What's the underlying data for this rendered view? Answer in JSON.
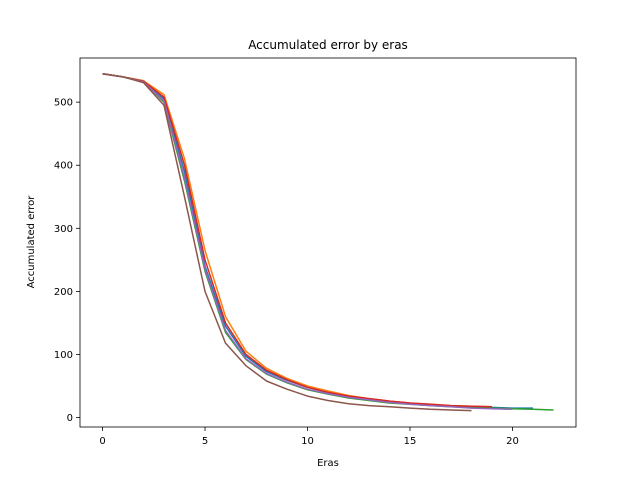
{
  "chart_data": {
    "type": "line",
    "title": "Accumulated error by eras",
    "xlabel": "Eras",
    "ylabel": "Accumulated error",
    "xlim": [
      -1.1,
      23.1
    ],
    "ylim": [
      -15,
      570
    ],
    "xticks": [
      0,
      5,
      10,
      15,
      20
    ],
    "yticks": [
      0,
      100,
      200,
      300,
      400,
      500
    ],
    "grid": false,
    "series": [
      {
        "color": "#1f77b4",
        "x": [
          0,
          1,
          2,
          3,
          4,
          5,
          6,
          7,
          8,
          9,
          10,
          11,
          12,
          13,
          14,
          15,
          16,
          17,
          18,
          19,
          20,
          21
        ],
        "y": [
          545,
          540,
          534,
          505,
          390,
          240,
          145,
          97,
          73,
          59,
          48,
          40,
          33,
          29,
          25,
          22,
          20,
          18,
          17,
          16,
          15,
          15
        ]
      },
      {
        "color": "#ff7f0e",
        "x": [
          0,
          1,
          2,
          3,
          4,
          5,
          6,
          7,
          8,
          9,
          10,
          11,
          12,
          13,
          14,
          15,
          16,
          17,
          18,
          19
        ],
        "y": [
          545,
          540,
          534,
          512,
          410,
          265,
          160,
          105,
          78,
          62,
          50,
          42,
          35,
          30,
          26,
          23,
          21,
          19,
          18,
          17
        ]
      },
      {
        "color": "#2ca02c",
        "x": [
          0,
          1,
          2,
          3,
          4,
          5,
          6,
          7,
          8,
          9,
          10,
          11,
          12,
          13,
          14,
          15,
          16,
          17,
          18,
          19,
          20,
          21,
          22
        ],
        "y": [
          545,
          540,
          533,
          500,
          375,
          232,
          135,
          92,
          69,
          55,
          44,
          37,
          31,
          27,
          23,
          21,
          19,
          17,
          16,
          15,
          14,
          13,
          12
        ]
      },
      {
        "color": "#d62728",
        "x": [
          0,
          1,
          2,
          3,
          4,
          5,
          6,
          7,
          8,
          9,
          10,
          11,
          12,
          13,
          14,
          15,
          16,
          17,
          18,
          19
        ],
        "y": [
          545,
          540,
          533,
          508,
          400,
          250,
          150,
          100,
          75,
          60,
          48,
          40,
          34,
          30,
          26,
          23,
          21,
          19,
          18,
          17
        ]
      },
      {
        "color": "#9467bd",
        "x": [
          0,
          1,
          2,
          3,
          4,
          5,
          6,
          7,
          8,
          9,
          10,
          11,
          12,
          13,
          14,
          15,
          16,
          17,
          18,
          19,
          20
        ],
        "y": [
          545,
          540,
          532,
          502,
          380,
          235,
          138,
          93,
          70,
          56,
          45,
          38,
          32,
          28,
          24,
          21,
          19,
          17,
          15,
          14,
          13
        ]
      },
      {
        "color": "#8c564b",
        "x": [
          0,
          1,
          2,
          3,
          4,
          5,
          6,
          7,
          8,
          9,
          10,
          11,
          12,
          13,
          14,
          15,
          16,
          17,
          18
        ],
        "y": [
          545,
          540,
          531,
          495,
          350,
          200,
          118,
          82,
          58,
          45,
          34,
          27,
          22,
          19,
          17,
          15,
          13,
          12,
          11
        ]
      }
    ]
  }
}
